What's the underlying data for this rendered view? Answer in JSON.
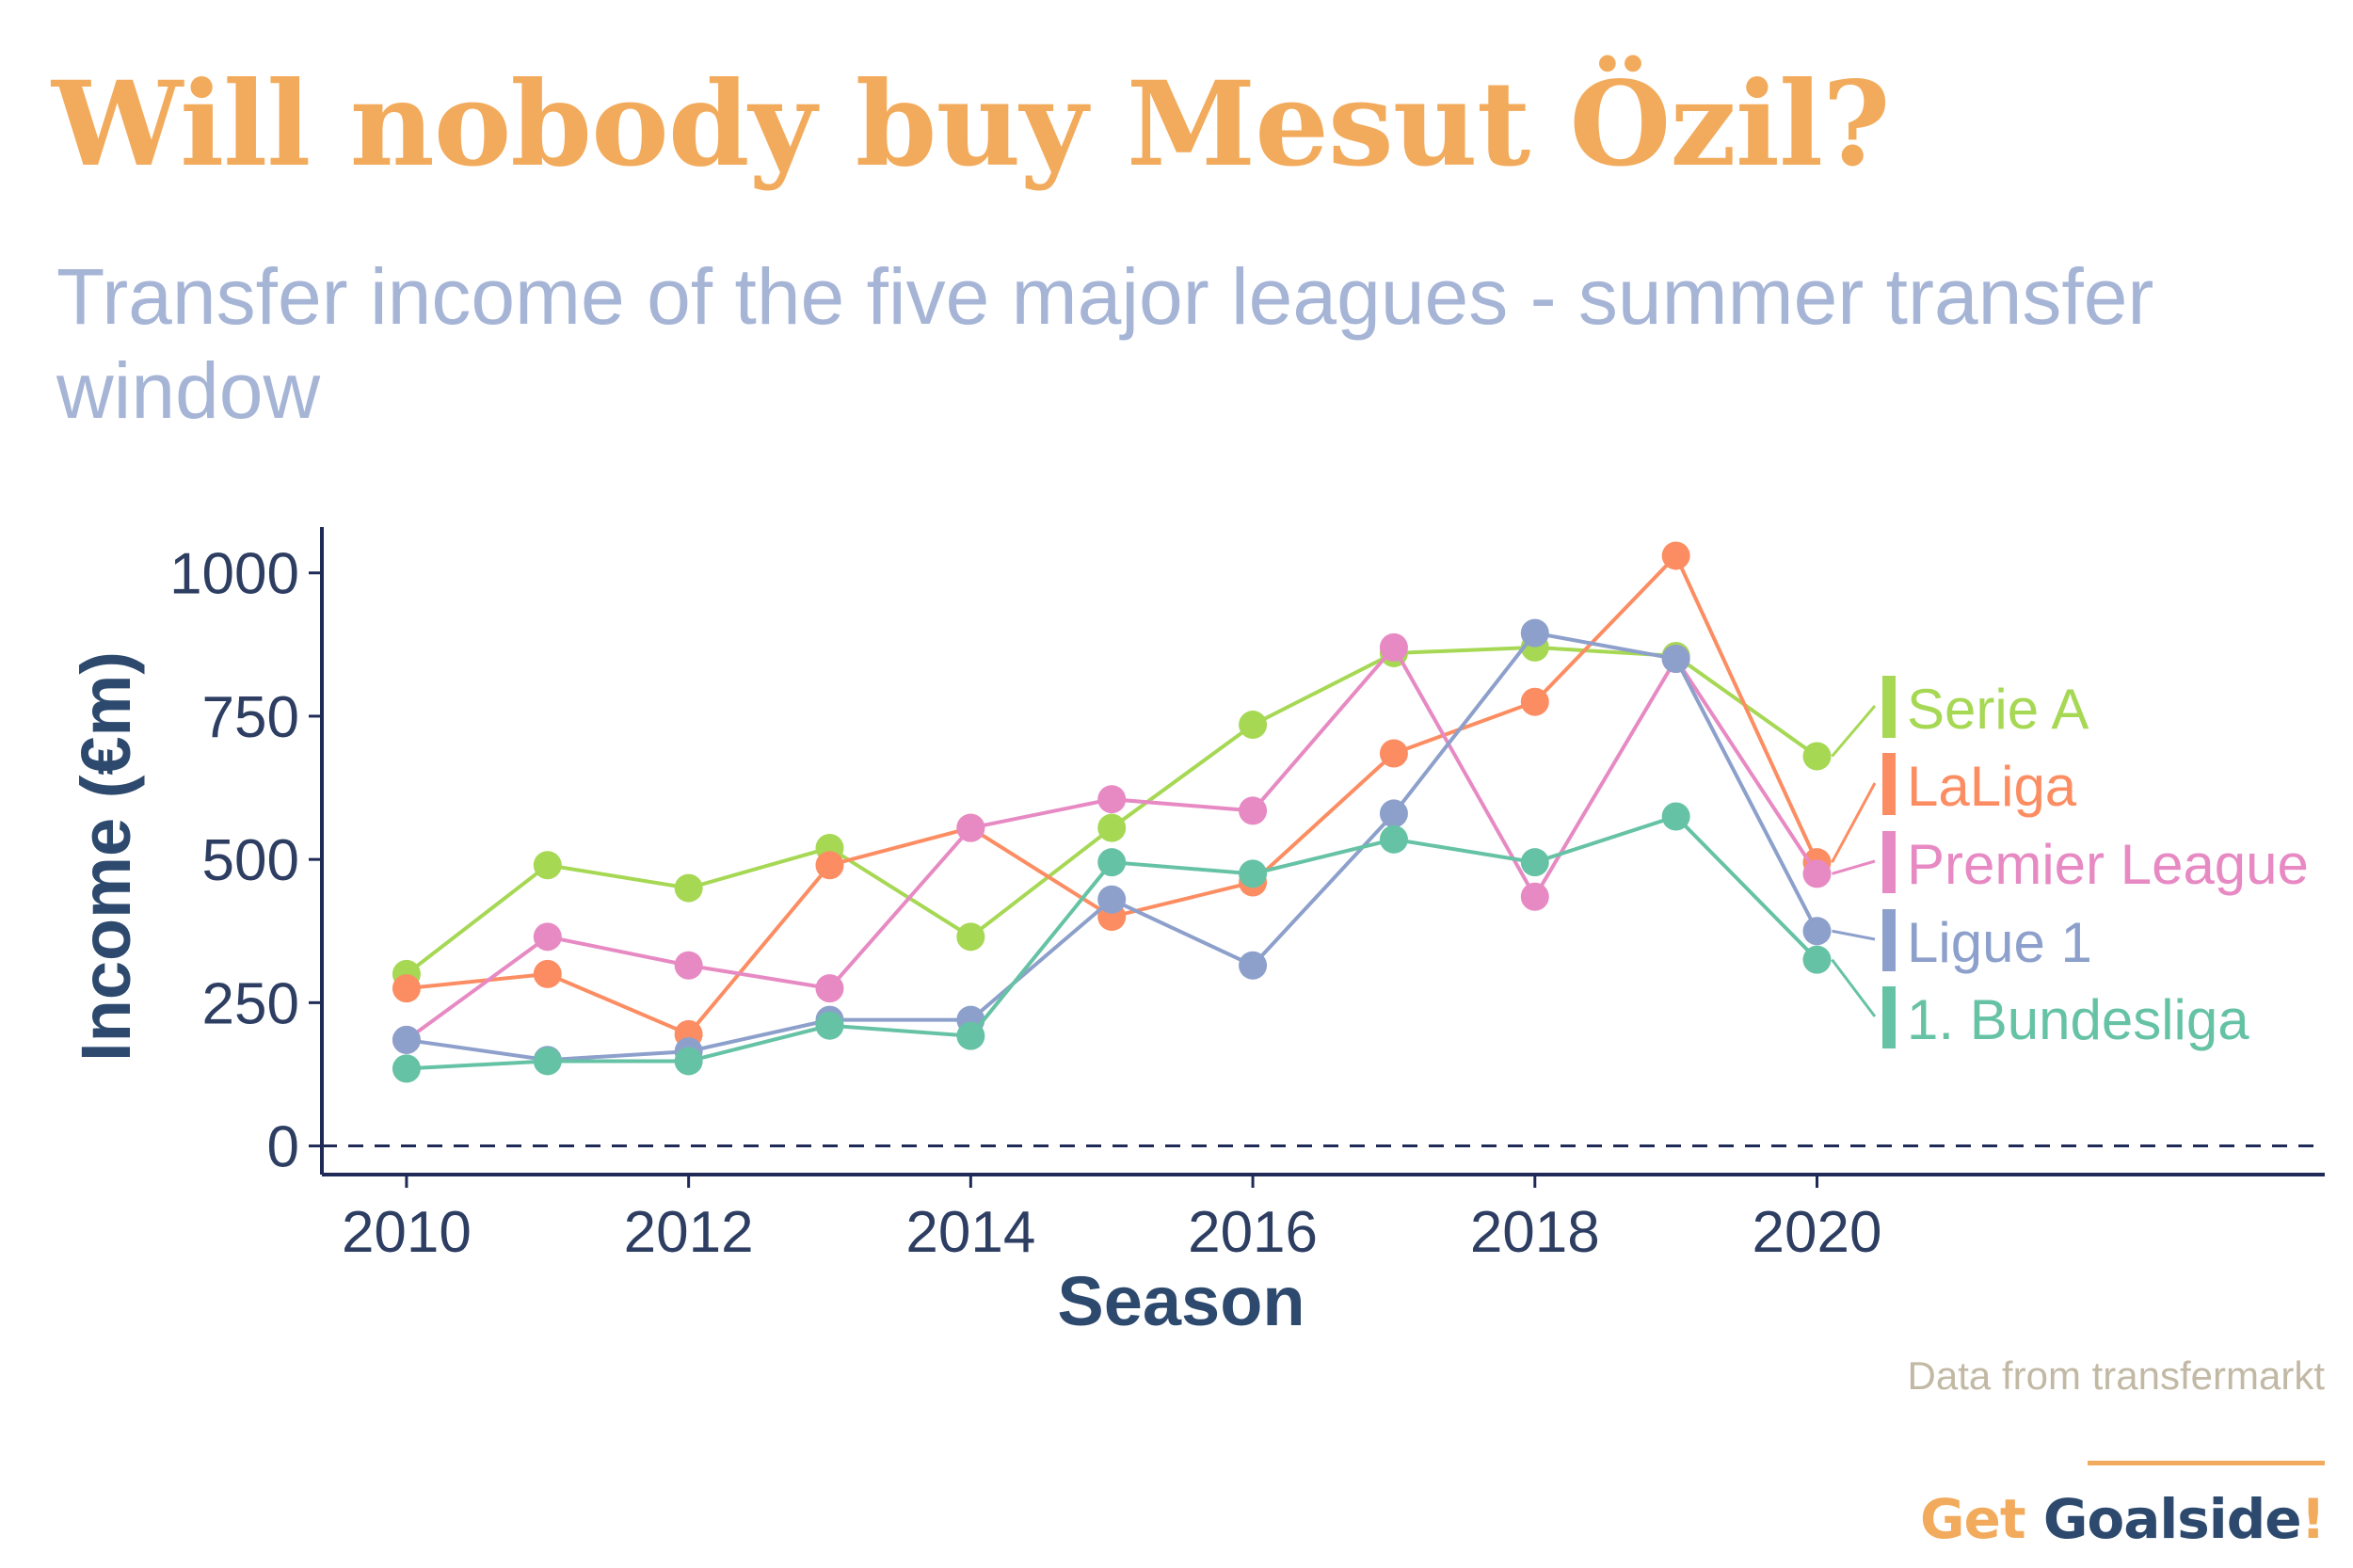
{
  "chart_data": {
    "type": "line",
    "title": "Will nobody buy Mesut Özil?",
    "subtitle": "Transfer income of the five major leagues - summer transfer window",
    "xlabel": "Season",
    "ylabel": "Income (€m)",
    "x": [
      2010,
      2011,
      2012,
      2013,
      2014,
      2015,
      2016,
      2017,
      2018,
      2019,
      2020
    ],
    "xticks": [
      2010,
      2012,
      2014,
      2016,
      2018,
      2020
    ],
    "yticks": [
      0,
      250,
      500,
      750,
      1000
    ],
    "ylim": [
      -50,
      1080
    ],
    "xlim": [
      2009.4,
      2023.6
    ],
    "reference_line": 0,
    "grid": false,
    "legend": "direct labels at right",
    "series": [
      {
        "name": "Serie A",
        "color": "#A6D854",
        "values": [
          300,
          490,
          450,
          520,
          365,
          555,
          735,
          860,
          870,
          855,
          680
        ]
      },
      {
        "name": "LaLiga",
        "color": "#FC8D62",
        "values": [
          275,
          300,
          195,
          490,
          555,
          400,
          460,
          685,
          775,
          1030,
          495
        ]
      },
      {
        "name": "Premier League",
        "color": "#E78AC3",
        "values": [
          185,
          365,
          315,
          275,
          555,
          605,
          585,
          870,
          435,
          850,
          475
        ]
      },
      {
        "name": "Ligue 1",
        "color": "#8DA0CB",
        "values": [
          185,
          150,
          165,
          220,
          220,
          430,
          315,
          580,
          895,
          850,
          375
        ]
      },
      {
        "name": "1. Bundesliga",
        "color": "#66C2A5",
        "values": [
          135,
          148,
          148,
          210,
          192,
          495,
          475,
          535,
          495,
          575,
          325
        ]
      }
    ]
  },
  "source": "Data from transfermarkt",
  "brand": {
    "get": "Get ",
    "goal": "Goalside",
    "bang": "!"
  }
}
